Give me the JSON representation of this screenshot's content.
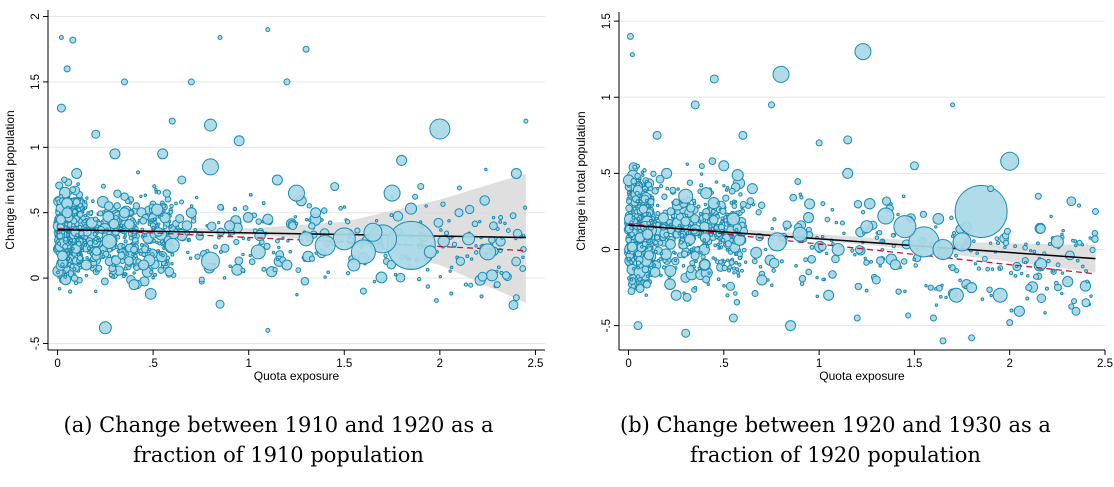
{
  "chart_data": [
    {
      "type": "scatter",
      "title": "",
      "xlabel": "Quota exposure",
      "ylabel": "Change in total population",
      "xlim": [
        -0.05,
        2.55
      ],
      "ylim": [
        -0.55,
        2.05
      ],
      "x_ticks": [
        0,
        0.5,
        1,
        1.5,
        2,
        2.5
      ],
      "x_tick_labels": [
        "0",
        ".5",
        "1",
        "1.5",
        "2",
        "2.5"
      ],
      "y_ticks": [
        -0.5,
        0,
        0.5,
        1,
        1.5,
        2
      ],
      "y_tick_labels": [
        "-.5",
        "0",
        ".5",
        "1",
        "1.5",
        "2"
      ],
      "grid": true,
      "colors": {
        "points_fill": "#a9d8e6",
        "points_edge": "#1a8bb0",
        "fit_line": "#000000",
        "weighted_line": "#c0143c",
        "ci_band": "#d9d9d9"
      },
      "fit_line": {
        "x": [
          0,
          2.45
        ],
        "y": [
          0.37,
          0.31
        ]
      },
      "weighted_fit_line": {
        "x": [
          0,
          2.45
        ],
        "y": [
          0.38,
          0.21
        ],
        "style": "dashed"
      },
      "confidence_band": {
        "x": [
          0,
          0.5,
          1,
          1.5,
          2,
          2.45
        ],
        "upper": [
          0.39,
          0.38,
          0.38,
          0.43,
          0.6,
          0.8
        ],
        "lower": [
          0.35,
          0.34,
          0.33,
          0.28,
          0.1,
          -0.19
        ]
      },
      "points": [
        {
          "x": 1.85,
          "y": 0.25,
          "s": 24
        },
        {
          "x": 1.7,
          "y": 0.3,
          "s": 14
        },
        {
          "x": 1.6,
          "y": 0.2,
          "s": 12
        },
        {
          "x": 1.5,
          "y": 0.3,
          "s": 11
        },
        {
          "x": 1.4,
          "y": 0.25,
          "s": 10
        },
        {
          "x": 2.0,
          "y": 1.14,
          "s": 10
        },
        {
          "x": 1.65,
          "y": 0.35,
          "s": 9
        },
        {
          "x": 0.8,
          "y": 0.13,
          "s": 9
        },
        {
          "x": 0.8,
          "y": 0.85,
          "s": 8
        },
        {
          "x": 1.75,
          "y": 0.65,
          "s": 8
        },
        {
          "x": 2.25,
          "y": 0.2,
          "s": 8
        },
        {
          "x": 1.25,
          "y": 0.65,
          "s": 8
        },
        {
          "x": 0.27,
          "y": 0.28,
          "s": 7
        },
        {
          "x": 0.6,
          "y": 0.25,
          "s": 7
        },
        {
          "x": 1.05,
          "y": 0.2,
          "s": 7
        },
        {
          "x": 1.3,
          "y": 0.3,
          "s": 7
        },
        {
          "x": 0.25,
          "y": -0.38,
          "s": 6
        },
        {
          "x": 0.8,
          "y": 1.17,
          "s": 6
        },
        {
          "x": 1.95,
          "y": 0.2,
          "s": 6
        },
        {
          "x": 2.15,
          "y": 0.3,
          "s": 6
        },
        {
          "x": 1.55,
          "y": 0.1,
          "s": 6
        },
        {
          "x": 0.1,
          "y": 0.8,
          "s": 5
        },
        {
          "x": 0.05,
          "y": 0.5,
          "s": 5
        },
        {
          "x": 0.15,
          "y": 0.1,
          "s": 5
        },
        {
          "x": 0.35,
          "y": 0.5,
          "s": 5
        },
        {
          "x": 0.45,
          "y": 0.1,
          "s": 5
        },
        {
          "x": 0.7,
          "y": 0.5,
          "s": 5
        },
        {
          "x": 0.9,
          "y": 0.4,
          "s": 5
        },
        {
          "x": 1.1,
          "y": 0.45,
          "s": 5
        },
        {
          "x": 1.2,
          "y": 0.1,
          "s": 5
        },
        {
          "x": 1.35,
          "y": 0.5,
          "s": 5
        },
        {
          "x": 0.55,
          "y": 0.95,
          "s": 5
        },
        {
          "x": 0.3,
          "y": 0.95,
          "s": 5
        },
        {
          "x": 0.4,
          "y": -0.05,
          "s": 5
        },
        {
          "x": 2.4,
          "y": 0.8,
          "s": 5
        },
        {
          "x": 1.8,
          "y": 0.9,
          "s": 5
        },
        {
          "x": 0.95,
          "y": 1.05,
          "s": 5
        },
        {
          "x": 1.15,
          "y": 0.75,
          "s": 5
        },
        {
          "x": 0.65,
          "y": 0.75,
          "s": 4
        },
        {
          "x": 2.1,
          "y": 0.5,
          "s": 4
        },
        {
          "x": 1.45,
          "y": 0.7,
          "s": 4
        },
        {
          "x": 0.02,
          "y": 1.3,
          "s": 4
        },
        {
          "x": 0.05,
          "y": 1.6,
          "s": 3
        },
        {
          "x": 1.1,
          "y": 1.9,
          "s": 2
        },
        {
          "x": 0.85,
          "y": 1.84,
          "s": 2
        },
        {
          "x": 0.02,
          "y": 1.84,
          "s": 2
        },
        {
          "x": 0.08,
          "y": 1.82,
          "s": 3
        },
        {
          "x": 1.3,
          "y": 1.75,
          "s": 3
        },
        {
          "x": 2.45,
          "y": 1.2,
          "s": 2
        },
        {
          "x": 2.4,
          "y": -0.15,
          "s": 3
        },
        {
          "x": 1.1,
          "y": -0.4,
          "s": 2
        },
        {
          "x": 0.35,
          "y": 1.5,
          "s": 3
        },
        {
          "x": 0.7,
          "y": 1.5,
          "s": 3
        },
        {
          "x": 1.2,
          "y": 1.5,
          "s": 3
        },
        {
          "x": 0.2,
          "y": 1.1,
          "s": 4
        },
        {
          "x": 0.6,
          "y": 1.2,
          "s": 3
        },
        {
          "x": 1.9,
          "y": 0.7,
          "s": 3
        },
        {
          "x": 2.3,
          "y": -0.05,
          "s": 3
        },
        {
          "x": 1.6,
          "y": -0.1,
          "s": 3
        },
        {
          "x": 0.85,
          "y": -0.2,
          "s": 4
        }
      ]
    },
    {
      "type": "scatter",
      "title": "",
      "xlabel": "Quota exposure",
      "ylabel": "Change in total population",
      "xlim": [
        -0.05,
        2.5
      ],
      "ylim": [
        -0.66,
        1.56
      ],
      "x_ticks": [
        0,
        0.5,
        1,
        1.5,
        2,
        2.5
      ],
      "x_tick_labels": [
        "0",
        ".5",
        "1",
        "1.5",
        "2",
        "2.5"
      ],
      "y_ticks": [
        -0.5,
        0,
        0.5,
        1,
        1.5
      ],
      "y_tick_labels": [
        "-.5",
        "0",
        ".5",
        "1",
        "1.5"
      ],
      "grid": true,
      "colors": {
        "points_fill": "#a9d8e6",
        "points_edge": "#1a8bb0",
        "fit_line": "#000000",
        "weighted_line": "#c0143c",
        "ci_band": "#d9d9d9"
      },
      "fit_line": {
        "x": [
          0,
          2.45
        ],
        "y": [
          0.16,
          -0.06
        ]
      },
      "weighted_fit_line": {
        "x": [
          0,
          2.45
        ],
        "y": [
          0.17,
          -0.16
        ],
        "style": "dashed"
      },
      "confidence_band": {
        "x": [
          0,
          0.5,
          1,
          1.5,
          2,
          2.45
        ],
        "upper": [
          0.18,
          0.14,
          0.1,
          0.06,
          0.04,
          0.03
        ],
        "lower": [
          0.14,
          0.1,
          0.06,
          0.0,
          -0.08,
          -0.15
        ]
      },
      "points": [
        {
          "x": 1.85,
          "y": 0.25,
          "s": 26
        },
        {
          "x": 1.55,
          "y": 0.05,
          "s": 15
        },
        {
          "x": 1.45,
          "y": 0.15,
          "s": 11
        },
        {
          "x": 1.65,
          "y": 0.0,
          "s": 10
        },
        {
          "x": 1.75,
          "y": 0.05,
          "s": 9
        },
        {
          "x": 0.78,
          "y": 0.05,
          "s": 9
        },
        {
          "x": 2.0,
          "y": 0.58,
          "s": 9
        },
        {
          "x": 1.23,
          "y": 1.3,
          "s": 8
        },
        {
          "x": 0.8,
          "y": 1.15,
          "s": 8
        },
        {
          "x": 1.35,
          "y": 0.22,
          "s": 8
        },
        {
          "x": 1.72,
          "y": -0.3,
          "s": 7
        },
        {
          "x": 1.95,
          "y": -0.3,
          "s": 7
        },
        {
          "x": 0.9,
          "y": 0.1,
          "s": 7
        },
        {
          "x": 0.3,
          "y": 0.35,
          "s": 7
        },
        {
          "x": 0.55,
          "y": 0.2,
          "s": 6
        },
        {
          "x": 1.1,
          "y": 0.0,
          "s": 6
        },
        {
          "x": 1.25,
          "y": 0.15,
          "s": 6
        },
        {
          "x": 1.8,
          "y": -0.25,
          "s": 5
        },
        {
          "x": 2.25,
          "y": 0.05,
          "s": 6
        },
        {
          "x": 0.1,
          "y": 0.1,
          "s": 5
        },
        {
          "x": 0.2,
          "y": 0.5,
          "s": 5
        },
        {
          "x": 0.4,
          "y": -0.1,
          "s": 5
        },
        {
          "x": 0.5,
          "y": 0.55,
          "s": 5
        },
        {
          "x": 0.7,
          "y": -0.2,
          "s": 5
        },
        {
          "x": 0.65,
          "y": 0.4,
          "s": 5
        },
        {
          "x": 0.95,
          "y": 0.3,
          "s": 5
        },
        {
          "x": 1.05,
          "y": -0.3,
          "s": 5
        },
        {
          "x": 1.15,
          "y": 0.5,
          "s": 5
        },
        {
          "x": 1.4,
          "y": -0.1,
          "s": 5
        },
        {
          "x": 0.25,
          "y": -0.3,
          "s": 5
        },
        {
          "x": 0.15,
          "y": 0.75,
          "s": 4
        },
        {
          "x": 0.35,
          "y": 0.95,
          "s": 4
        },
        {
          "x": 0.85,
          "y": -0.5,
          "s": 5
        },
        {
          "x": 0.05,
          "y": -0.5,
          "s": 4
        },
        {
          "x": 0.45,
          "y": 1.12,
          "s": 4
        },
        {
          "x": 1.6,
          "y": -0.45,
          "s": 3
        },
        {
          "x": 2.0,
          "y": -0.48,
          "s": 3
        },
        {
          "x": 2.4,
          "y": -0.35,
          "s": 4
        },
        {
          "x": 1.15,
          "y": 0.72,
          "s": 4
        },
        {
          "x": 0.6,
          "y": 0.75,
          "s": 4
        },
        {
          "x": 0.01,
          "y": 1.4,
          "s": 3
        },
        {
          "x": 0.02,
          "y": 1.28,
          "s": 2
        },
        {
          "x": 1.65,
          "y": -0.6,
          "s": 3
        },
        {
          "x": 1.8,
          "y": -0.58,
          "s": 3
        },
        {
          "x": 1.5,
          "y": 0.55,
          "s": 4
        },
        {
          "x": 2.15,
          "y": 0.35,
          "s": 3
        },
        {
          "x": 1.0,
          "y": 0.7,
          "s": 3
        },
        {
          "x": 0.75,
          "y": 0.95,
          "s": 3
        },
        {
          "x": 1.9,
          "y": 0.4,
          "s": 3
        },
        {
          "x": 2.1,
          "y": -0.25,
          "s": 3
        },
        {
          "x": 0.3,
          "y": -0.55,
          "s": 4
        },
        {
          "x": 1.3,
          "y": -0.2,
          "s": 4
        },
        {
          "x": 1.7,
          "y": 0.95,
          "s": 2
        },
        {
          "x": 2.45,
          "y": 0.25,
          "s": 3
        },
        {
          "x": 0.55,
          "y": -0.45,
          "s": 4
        },
        {
          "x": 1.2,
          "y": -0.45,
          "s": 3
        }
      ]
    }
  ],
  "captions": {
    "a_line1": "(a) Change between 1910 and 1920 as a",
    "a_line2": "fraction of 1910 population",
    "b_line1": "(b) Change between 1920 and 1930 as a",
    "b_line2": "fraction of 1920 population"
  }
}
